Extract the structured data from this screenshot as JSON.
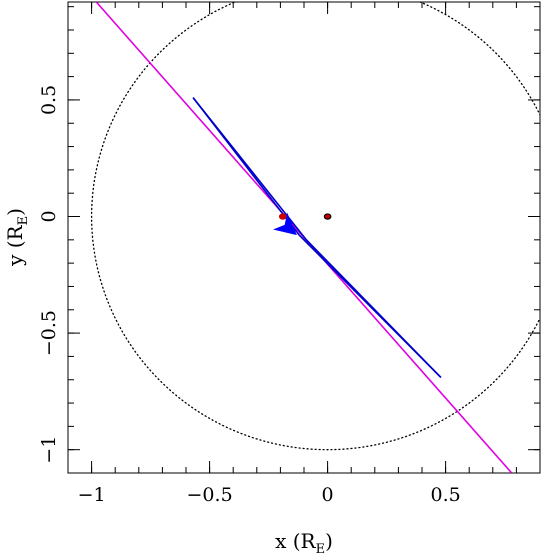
{
  "chart_data": {
    "type": "line",
    "xlabel": "x (R",
    "xlabel_sub": "E",
    "xlabel_close": ")",
    "ylabel": "y (R",
    "ylabel_sub": "E",
    "ylabel_close": ")",
    "xlim": [
      -1.1,
      0.9
    ],
    "ylim": [
      -1.1,
      0.92
    ],
    "x_ticks": [
      -1,
      -0.5,
      0,
      0.5
    ],
    "x_tick_labels": [
      "−1",
      "−0.5",
      "0",
      "0.5"
    ],
    "y_ticks": [
      -1,
      -0.5,
      0,
      0.5
    ],
    "y_tick_labels": [
      "−1",
      "−0.5",
      "0",
      "0.5"
    ],
    "x_minor_step": 0.1,
    "y_minor_step": 0.1,
    "grid": false,
    "series": [
      {
        "kind": "circle",
        "center": [
          0,
          0
        ],
        "radius": 1.0,
        "style": "dotted",
        "color": "#000000"
      },
      {
        "kind": "line",
        "color": "#e000e0",
        "x": [
          -0.98,
          0.78
        ],
        "y": [
          0.92,
          -1.1
        ]
      },
      {
        "kind": "line",
        "color": "#0000cc",
        "x": [
          -0.57,
          -0.12,
          0.48
        ],
        "y": [
          0.51,
          -0.08,
          -0.69
        ]
      },
      {
        "kind": "line",
        "color": "#0000cc",
        "x": [
          0.48,
          -0.09,
          -0.57
        ],
        "y": [
          -0.69,
          -0.1,
          0.51
        ]
      }
    ],
    "arrow": {
      "x": -0.13,
      "y": -0.08,
      "color": "#0000ff",
      "direction_deg": -40
    },
    "points": [
      {
        "x": 0.0,
        "y": 0.0,
        "fill": "#cc0000",
        "stroke": "#000000"
      },
      {
        "x": -0.19,
        "y": 0.0,
        "fill": "#cc0000",
        "stroke": "#cc0000"
      }
    ]
  }
}
